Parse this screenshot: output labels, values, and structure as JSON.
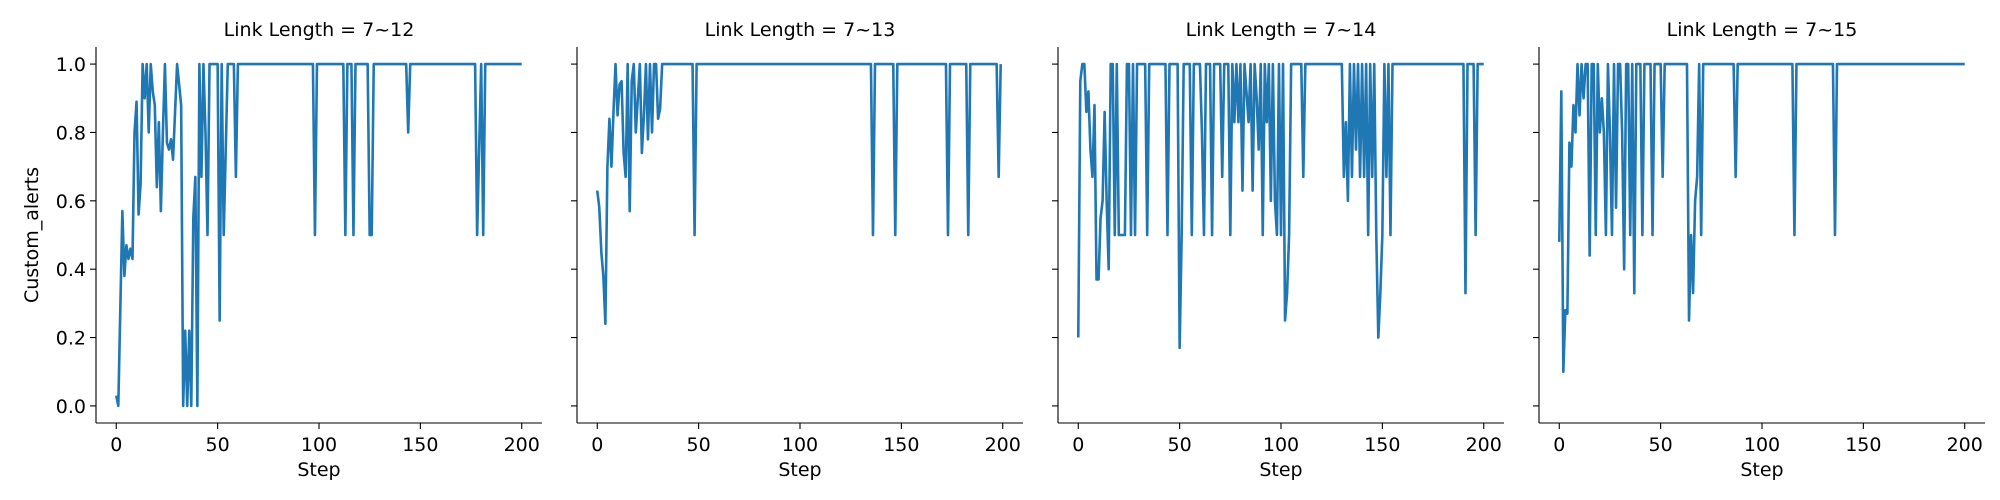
{
  "chart_data": [
    {
      "type": "line",
      "title": "Link Length = 7~12",
      "xlabel": "Step",
      "ylabel": "Custom_alerts",
      "color": "#1f77b4",
      "x": [
        0,
        1,
        3,
        4,
        5,
        6,
        7,
        8,
        9,
        10,
        11,
        12,
        13,
        14,
        15,
        16,
        17,
        18,
        19,
        20,
        21,
        22,
        23,
        24,
        25,
        26,
        27,
        28,
        30,
        32,
        33,
        34,
        35,
        36,
        37,
        38,
        39,
        40,
        41,
        42,
        43,
        44,
        45,
        46,
        47,
        48,
        50,
        51,
        52,
        53,
        55,
        58,
        59,
        60,
        97,
        98,
        99,
        112,
        113,
        114,
        116,
        117,
        118,
        124,
        125,
        126,
        127,
        143,
        144,
        145,
        177,
        178,
        180,
        181,
        182,
        200
      ],
      "values": [
        0.03,
        0,
        0.57,
        0.38,
        0.47,
        0.43,
        0.46,
        0.43,
        0.8,
        0.89,
        0.56,
        0.65,
        1,
        0.9,
        1,
        0.8,
        1,
        0.92,
        0.88,
        0.64,
        0.83,
        0.57,
        0.8,
        1,
        0.77,
        0.75,
        0.78,
        0.72,
        1,
        0.88,
        0,
        0.22,
        0,
        0.22,
        0,
        0.55,
        0.67,
        0,
        1,
        0.67,
        1,
        0.8,
        0.5,
        1,
        1,
        1,
        1,
        0.25,
        1,
        0.5,
        1,
        1,
        0.67,
        1,
        1,
        0.5,
        1,
        1,
        0.5,
        1,
        1,
        0.5,
        1,
        1,
        0.5,
        0.5,
        1,
        1,
        0.8,
        1,
        1,
        0.5,
        1,
        0.5,
        1,
        1
      ],
      "xlim": [
        -10,
        210
      ],
      "xticks": [
        0,
        50,
        100,
        150,
        200
      ],
      "ylim": [
        -0.05,
        1.05
      ],
      "yticks": [
        {
          "value": 0,
          "label": "0.0"
        },
        0.2,
        0.4,
        0.6,
        0.8,
        {
          "value": 1,
          "label": "1.0"
        }
      ]
    },
    {
      "type": "line",
      "title": "Link Length = 7~13",
      "xlabel": "Step",
      "color": "#1f77b4",
      "x": [
        0,
        1,
        2,
        3,
        4,
        5,
        6,
        7,
        8,
        9,
        10,
        11,
        12,
        13,
        14,
        15,
        16,
        17,
        18,
        19,
        20,
        21,
        22,
        23,
        24,
        25,
        26,
        27,
        28,
        29,
        30,
        31,
        32,
        47,
        48,
        49,
        135,
        136,
        137,
        146,
        147,
        148,
        172,
        173,
        174,
        182,
        183,
        184,
        197,
        198,
        199
      ],
      "values": [
        0.63,
        0.58,
        0.45,
        0.38,
        0.24,
        0.7,
        0.84,
        0.7,
        0.86,
        1,
        0.85,
        0.94,
        0.95,
        0.74,
        0.67,
        1,
        0.57,
        0.95,
        1,
        0.8,
        0.9,
        1,
        0.74,
        0.85,
        1,
        0.78,
        1,
        0.8,
        1,
        1,
        0.84,
        0.87,
        1,
        1,
        0.5,
        1,
        1,
        0.5,
        1,
        1,
        0.5,
        1,
        1,
        0.5,
        1,
        1,
        0.5,
        1,
        1,
        0.67,
        1
      ],
      "xlim": [
        -10,
        210
      ],
      "xticks": [
        0,
        50,
        100,
        150,
        200
      ],
      "ylim": [
        -0.05,
        1.05
      ],
      "yticks": [
        0,
        0.2,
        0.4,
        0.6,
        0.8,
        1
      ]
    },
    {
      "type": "line",
      "title": "Link Length = 7~14",
      "xlabel": "Step",
      "color": "#1f77b4",
      "x": [
        0,
        1,
        2,
        3,
        4,
        5,
        6,
        7,
        8,
        9,
        10,
        11,
        12,
        13,
        14,
        15,
        16,
        17,
        18,
        19,
        20,
        21,
        22,
        23,
        24,
        25,
        26,
        27,
        28,
        29,
        33,
        34,
        35,
        43,
        44,
        45,
        49,
        50,
        51,
        52,
        55,
        56,
        57,
        60,
        61,
        62,
        63,
        65,
        66,
        67,
        70,
        71,
        72,
        74,
        75,
        76,
        77,
        78,
        79,
        80,
        81,
        82,
        84,
        85,
        86,
        87,
        88,
        89,
        90,
        91,
        92,
        93,
        94,
        95,
        96,
        97,
        98,
        99,
        100,
        101,
        102,
        103,
        104,
        105,
        110,
        111,
        112,
        130,
        131,
        132,
        133,
        134,
        135,
        136,
        137,
        138,
        139,
        140,
        141,
        142,
        143,
        144,
        145,
        146,
        147,
        148,
        149,
        150,
        151,
        152,
        153,
        154,
        155,
        190,
        191,
        192,
        195,
        196,
        197,
        200
      ],
      "values": [
        0.2,
        0.95,
        1,
        1,
        0.86,
        0.92,
        0.75,
        0.67,
        0.88,
        0.37,
        0.37,
        0.55,
        0.6,
        0.86,
        0.6,
        0.4,
        1,
        1,
        0.5,
        1,
        0.5,
        0.5,
        0.5,
        0.5,
        1,
        1,
        0.5,
        1,
        0.5,
        1,
        1,
        0.5,
        1,
        1,
        0.5,
        1,
        1,
        0.17,
        0.5,
        1,
        1,
        0.5,
        1,
        1,
        0.8,
        0.5,
        1,
        1,
        0.5,
        1,
        1,
        0.67,
        1,
        1,
        0.5,
        1,
        0.83,
        1,
        0.83,
        1,
        0.63,
        1,
        0.83,
        1,
        0.63,
        1,
        0.9,
        0.75,
        1,
        0.5,
        1,
        0.83,
        1,
        0.6,
        1,
        0.6,
        0.5,
        1,
        0.5,
        1,
        0.25,
        0.33,
        0.5,
        1,
        1,
        0.67,
        1,
        1,
        0.67,
        0.83,
        0.6,
        1,
        0.67,
        1,
        0.75,
        1,
        0.67,
        1,
        0.67,
        1,
        0.5,
        1,
        0.67,
        1,
        0.5,
        0.2,
        0.33,
        0.5,
        1,
        0.67,
        1,
        0.5,
        1,
        1,
        0.33,
        1,
        1,
        0.5,
        1,
        1
      ],
      "xlim": [
        -10,
        210
      ],
      "xticks": [
        0,
        50,
        100,
        150,
        200
      ],
      "ylim": [
        -0.05,
        1.05
      ],
      "yticks": [
        0,
        0.2,
        0.4,
        0.6,
        0.8,
        1
      ]
    },
    {
      "type": "line",
      "title": "Link Length = 7~15",
      "xlabel": "Step",
      "color": "#1f77b4",
      "x": [
        0,
        1,
        2,
        3,
        4,
        5,
        6,
        7,
        8,
        9,
        10,
        11,
        12,
        13,
        14,
        15,
        16,
        17,
        18,
        19,
        20,
        21,
        22,
        23,
        24,
        25,
        26,
        27,
        28,
        29,
        30,
        31,
        32,
        33,
        34,
        35,
        36,
        37,
        38,
        40,
        41,
        42,
        45,
        46,
        47,
        50,
        51,
        52,
        63,
        64,
        65,
        66,
        67,
        68,
        69,
        70,
        71,
        86,
        87,
        88,
        115,
        116,
        117,
        135,
        136,
        137,
        200
      ],
      "values": [
        0.48,
        0.92,
        0.1,
        0.28,
        0.27,
        0.77,
        0.7,
        0.88,
        0.8,
        1,
        0.85,
        1,
        0.9,
        1,
        1,
        0.44,
        1,
        1,
        0.5,
        1,
        0.8,
        0.9,
        0.8,
        0.5,
        1,
        0.8,
        0.5,
        1,
        0.58,
        1,
        1,
        0.8,
        0.4,
        1,
        1,
        0.5,
        1,
        0.33,
        1,
        1,
        0.5,
        1,
        1,
        0.5,
        1,
        1,
        0.67,
        1,
        1,
        0.25,
        0.5,
        0.33,
        0.6,
        0.67,
        1,
        0.5,
        1,
        1,
        0.67,
        1,
        1,
        0.5,
        1,
        1,
        0.5,
        1,
        1
      ],
      "xlim": [
        -10,
        210
      ],
      "xticks": [
        0,
        50,
        100,
        150,
        200
      ],
      "ylim": [
        -0.05,
        1.05
      ],
      "yticks": [
        0,
        0.2,
        0.4,
        0.6,
        0.8,
        1
      ]
    }
  ]
}
